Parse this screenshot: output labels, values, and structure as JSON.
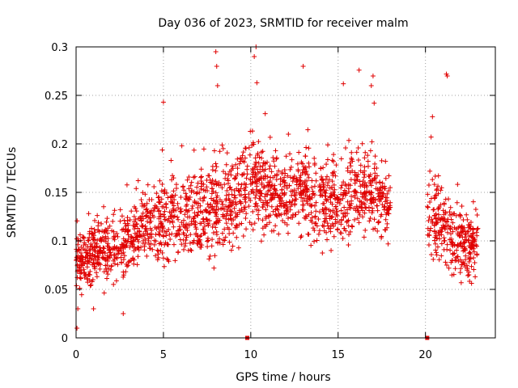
{
  "chart_data": {
    "type": "scatter",
    "title": "Day 036 of 2023, SRMTID for receiver malm",
    "xlabel": "GPS time / hours",
    "ylabel": "SRMTID / TECUs",
    "xlim": [
      0,
      24
    ],
    "ylim": [
      0,
      0.3
    ],
    "x_ticks": [
      0,
      5,
      10,
      15,
      20
    ],
    "y_ticks": [
      0,
      0.05,
      0.1,
      0.15,
      0.2,
      0.25,
      0.3
    ],
    "x_tick_labels": [
      "0",
      "5",
      "10",
      "15",
      "20"
    ],
    "y_tick_labels": [
      "0",
      "0.05",
      "0.1",
      "0.15",
      "0.2",
      "0.25",
      "0.3"
    ],
    "grid": true,
    "marker": "+",
    "series_color": "#e00000",
    "data_gaps_hours": [
      [
        18.0,
        20.1
      ]
    ],
    "zero_markers_x": [
      9.8,
      20.1
    ],
    "trend_segments": [
      {
        "x": 0.0,
        "y_center": 0.08,
        "spread": 0.025
      },
      {
        "x": 1.0,
        "y_center": 0.085,
        "spread": 0.028
      },
      {
        "x": 2.0,
        "y_center": 0.09,
        "spread": 0.028
      },
      {
        "x": 3.0,
        "y_center": 0.1,
        "spread": 0.028
      },
      {
        "x": 4.0,
        "y_center": 0.115,
        "spread": 0.03
      },
      {
        "x": 5.0,
        "y_center": 0.12,
        "spread": 0.035
      },
      {
        "x": 6.0,
        "y_center": 0.125,
        "spread": 0.035
      },
      {
        "x": 7.0,
        "y_center": 0.13,
        "spread": 0.035
      },
      {
        "x": 8.0,
        "y_center": 0.135,
        "spread": 0.04
      },
      {
        "x": 9.0,
        "y_center": 0.14,
        "spread": 0.04
      },
      {
        "x": 10.0,
        "y_center": 0.16,
        "spread": 0.04
      },
      {
        "x": 11.0,
        "y_center": 0.15,
        "spread": 0.035
      },
      {
        "x": 12.0,
        "y_center": 0.145,
        "spread": 0.035
      },
      {
        "x": 13.0,
        "y_center": 0.15,
        "spread": 0.035
      },
      {
        "x": 14.0,
        "y_center": 0.14,
        "spread": 0.035
      },
      {
        "x": 15.0,
        "y_center": 0.135,
        "spread": 0.035
      },
      {
        "x": 16.0,
        "y_center": 0.15,
        "spread": 0.04
      },
      {
        "x": 17.0,
        "y_center": 0.155,
        "spread": 0.04
      },
      {
        "x": 18.0,
        "y_center": 0.13,
        "spread": 0.03
      },
      {
        "x": 20.2,
        "y_center": 0.125,
        "spread": 0.035
      },
      {
        "x": 21.0,
        "y_center": 0.115,
        "spread": 0.035
      },
      {
        "x": 22.0,
        "y_center": 0.095,
        "spread": 0.03
      },
      {
        "x": 23.0,
        "y_center": 0.095,
        "spread": 0.03
      }
    ],
    "outliers": [
      {
        "x": 8.0,
        "y": 0.295
      },
      {
        "x": 8.05,
        "y": 0.28
      },
      {
        "x": 10.2,
        "y": 0.29
      },
      {
        "x": 10.3,
        "y": 0.3
      },
      {
        "x": 10.35,
        "y": 0.263
      },
      {
        "x": 13.0,
        "y": 0.28
      },
      {
        "x": 16.2,
        "y": 0.276
      },
      {
        "x": 17.0,
        "y": 0.27
      },
      {
        "x": 21.2,
        "y": 0.272
      },
      {
        "x": 21.25,
        "y": 0.27
      },
      {
        "x": 0.05,
        "y": 0.01
      },
      {
        "x": 0.1,
        "y": 0.03
      },
      {
        "x": 2.7,
        "y": 0.025
      },
      {
        "x": 1.0,
        "y": 0.03
      },
      {
        "x": 20.4,
        "y": 0.228
      },
      {
        "x": 5.0,
        "y": 0.243
      },
      {
        "x": 8.1,
        "y": 0.26
      },
      {
        "x": 15.3,
        "y": 0.262
      },
      {
        "x": 16.9,
        "y": 0.26
      }
    ]
  }
}
